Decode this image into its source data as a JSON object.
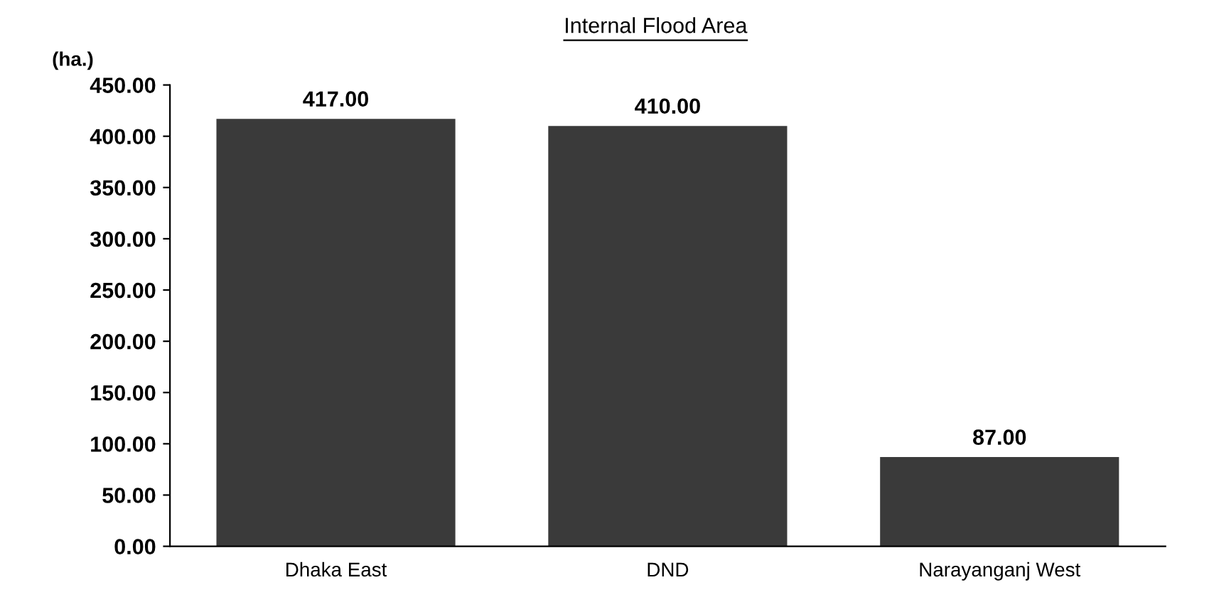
{
  "chart_data": {
    "type": "bar",
    "title": "Internal Flood Area",
    "ylabel": "(ha.)",
    "categories": [
      "Dhaka East",
      "DND",
      "Narayanganj West"
    ],
    "values": [
      417,
      410,
      87
    ],
    "value_labels": [
      "417.00",
      "410.00",
      "87.00"
    ],
    "color": "#3a3a3a",
    "ylim": [
      0,
      450
    ],
    "yticks": [
      {
        "value": 0,
        "label": "0.00"
      },
      {
        "value": 50,
        "label": "50.00"
      },
      {
        "value": 100,
        "label": "100.00"
      },
      {
        "value": 150,
        "label": "150.00"
      },
      {
        "value": 200,
        "label": "200.00"
      },
      {
        "value": 250,
        "label": "250.00"
      },
      {
        "value": 300,
        "label": "300.00"
      },
      {
        "value": 350,
        "label": "350.00"
      },
      {
        "value": 400,
        "label": "400.00"
      },
      {
        "value": 450,
        "label": "450.00"
      }
    ],
    "grid": false
  }
}
